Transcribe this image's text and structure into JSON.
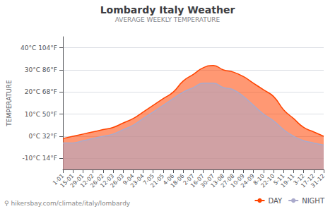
{
  "chart_data": {
    "type": "line",
    "title": "Lombardy Italy Weather",
    "subtitle": "AVERAGE WEEKLY TEMPERATURE",
    "ylabel": "TEMPERATURE",
    "annotations": [
      "⚲",
      "hikersbay.com/climate/italy/lombardy"
    ],
    "categories": [
      "1-01",
      "15-01",
      "29-01",
      "12-02",
      "26-02",
      "12-03",
      "26-03",
      "9-04",
      "23-04",
      "7-05",
      "21-05",
      "4-06",
      "18-06",
      "2-07",
      "16-07",
      "30-07",
      "13-08",
      "27-08",
      "10-09",
      "24-09",
      "8-10",
      "22-10",
      "5-11",
      "19-11",
      "3-12",
      "17-12",
      "31-12"
    ],
    "series": [
      {
        "name": "DAY",
        "color": "#ff4400",
        "values": [
          -1,
          0,
          1,
          2,
          3,
          4,
          6,
          8,
          11,
          14,
          17,
          20,
          25,
          28,
          31,
          32,
          30,
          29,
          27,
          24,
          21,
          18,
          12,
          8,
          4,
          2,
          0
        ]
      },
      {
        "name": "NIGHT",
        "color": "#aaaacc",
        "values": [
          -3,
          -3,
          -2,
          -1,
          0,
          1,
          3,
          5,
          8,
          11,
          14,
          17,
          20,
          22,
          24,
          24,
          22,
          21,
          18,
          14,
          10,
          7,
          3,
          0,
          -2,
          -3,
          -4
        ]
      }
    ],
    "ylim": [
      -15,
      45
    ],
    "yticks": [
      {
        "value": 40,
        "label": "40°C 104°F"
      },
      {
        "value": 30,
        "label": "30°C 86°F"
      },
      {
        "value": 20,
        "label": "20°C 68°F"
      },
      {
        "value": 10,
        "label": "10°C 50°F"
      },
      {
        "value": 0,
        "label": "0°C 32°F"
      },
      {
        "value": -10,
        "label": "-10°C 14°F"
      }
    ],
    "grid": true,
    "legend": "bottom"
  }
}
